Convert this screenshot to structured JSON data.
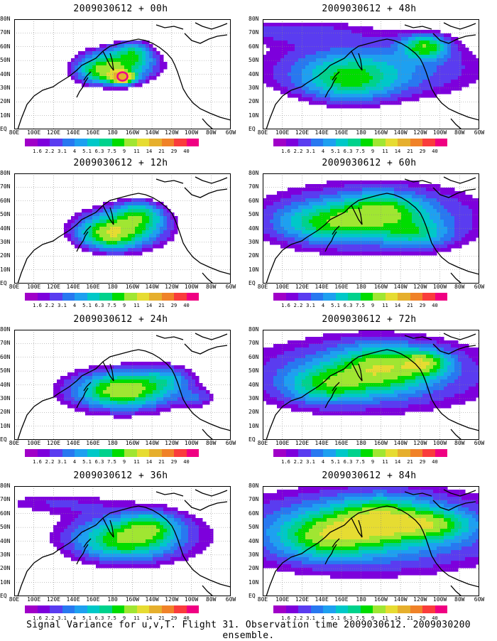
{
  "panels": [
    {
      "title": "2009030612 + 00h",
      "col": 0,
      "row": 0,
      "lead": "00h"
    },
    {
      "title": "2009030612 + 48h",
      "col": 1,
      "row": 0,
      "lead": "48h"
    },
    {
      "title": "2009030612 + 12h",
      "col": 0,
      "row": 1,
      "lead": "12h"
    },
    {
      "title": "2009030612 + 60h",
      "col": 1,
      "row": 1,
      "lead": "60h"
    },
    {
      "title": "2009030612 + 24h",
      "col": 0,
      "row": 2,
      "lead": "24h"
    },
    {
      "title": "2009030612 + 72h",
      "col": 1,
      "row": 2,
      "lead": "72h"
    },
    {
      "title": "2009030612 + 36h",
      "col": 0,
      "row": 3,
      "lead": "36h"
    },
    {
      "title": "2009030612 + 84h",
      "col": 1,
      "row": 3,
      "lead": "84h"
    }
  ],
  "lat_labels": [
    "80N",
    "70N",
    "60N",
    "50N",
    "40N",
    "30N",
    "20N",
    "10N",
    "EQ"
  ],
  "lon_labels": [
    "80E",
    "100E",
    "120E",
    "140E",
    "160E",
    "180",
    "160W",
    "140W",
    "120W",
    "100W",
    "80W",
    "60W"
  ],
  "colorbar": {
    "labels": [
      "1.6",
      "2.2",
      "3.1",
      "4",
      "5.1",
      "6.3",
      "7.5",
      "9",
      "11",
      "14",
      "21",
      "29",
      "40"
    ],
    "colors": [
      "#a000c8",
      "#7d00dc",
      "#5a3cf0",
      "#2878f0",
      "#1ea0f0",
      "#00c8c8",
      "#00d28c",
      "#00dc00",
      "#a0e632",
      "#e6dc32",
      "#e6af2d",
      "#f08228",
      "#fa3c3c",
      "#f00082"
    ]
  },
  "caption": "Signal Variance for u,v,T. Flight 31. Observation time 2009030612. 2009030200 ensemble."
}
